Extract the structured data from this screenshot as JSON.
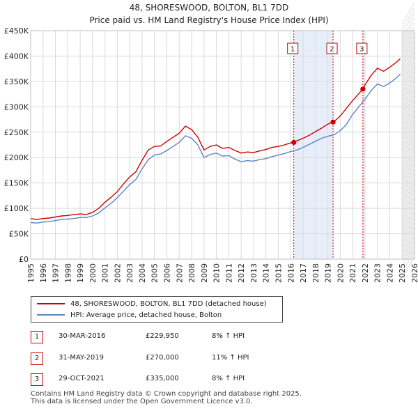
{
  "chart_data": {
    "type": "line",
    "title": "48, SHORESWOOD, BOLTON, BL1 7DD",
    "subtitle": "Price paid vs. HM Land Registry's House Price Index (HPI)",
    "xlim": [
      1995,
      2026
    ],
    "ylim": [
      0,
      450000
    ],
    "x_ticks": [
      1995,
      1996,
      1997,
      1998,
      1999,
      2000,
      2001,
      2002,
      2003,
      2004,
      2005,
      2006,
      2007,
      2008,
      2009,
      2010,
      2011,
      2012,
      2013,
      2014,
      2015,
      2016,
      2017,
      2018,
      2019,
      2020,
      2021,
      2022,
      2023,
      2024,
      2025,
      2026
    ],
    "y_ticks": [
      {
        "value": 0,
        "label": "£0"
      },
      {
        "value": 50000,
        "label": "£50K"
      },
      {
        "value": 100000,
        "label": "£100K"
      },
      {
        "value": 150000,
        "label": "£150K"
      },
      {
        "value": 200000,
        "label": "£200K"
      },
      {
        "value": 250000,
        "label": "£250K"
      },
      {
        "value": 300000,
        "label": "£300K"
      },
      {
        "value": 350000,
        "label": "£350K"
      },
      {
        "value": 400000,
        "label": "£400K"
      },
      {
        "value": 450000,
        "label": "£450K"
      }
    ],
    "grid": true,
    "series": [
      {
        "name": "48, SHORESWOOD, BOLTON, BL1 7DD (detached house)",
        "color": "#cc0000",
        "x": [
          1995,
          1995.5,
          1996,
          1996.5,
          1997,
          1997.5,
          1998,
          1998.5,
          1999,
          1999.5,
          2000,
          2000.5,
          2001,
          2001.5,
          2002,
          2002.5,
          2003,
          2003.5,
          2004,
          2004.5,
          2005,
          2005.5,
          2006,
          2006.5,
          2007,
          2007.5,
          2008,
          2008.5,
          2009,
          2009.5,
          2010,
          2010.5,
          2011,
          2011.5,
          2012,
          2012.5,
          2013,
          2013.5,
          2014,
          2014.5,
          2015,
          2015.5,
          2016,
          2016.25,
          2016.5,
          2017,
          2017.5,
          2018,
          2018.5,
          2019,
          2019.42,
          2019.5,
          2020,
          2020.5,
          2021,
          2021.5,
          2021.83,
          2022,
          2022.5,
          2023,
          2023.5,
          2024,
          2024.5,
          2024.85
        ],
        "values": [
          80000,
          78000,
          80000,
          81000,
          83000,
          85000,
          86000,
          88000,
          89000,
          88000,
          92000,
          100000,
          112000,
          122000,
          133000,
          148000,
          162000,
          172000,
          195000,
          215000,
          222000,
          223000,
          232000,
          240000,
          248000,
          262000,
          255000,
          240000,
          215000,
          222000,
          225000,
          218000,
          220000,
          214000,
          209000,
          211000,
          210000,
          213000,
          216000,
          220000,
          222000,
          225000,
          229000,
          229950,
          233000,
          238000,
          244000,
          251000,
          258000,
          266000,
          270000,
          271000,
          282000,
          297000,
          312000,
          326000,
          335000,
          343000,
          362000,
          376000,
          370000,
          378000,
          387000,
          395000
        ]
      },
      {
        "name": "HPI: Average price, detached house, Bolton",
        "color": "#5b84c4",
        "x": [
          1995,
          1995.5,
          1996,
          1996.5,
          1997,
          1997.5,
          1998,
          1998.5,
          1999,
          1999.5,
          2000,
          2000.5,
          2001,
          2001.5,
          2002,
          2002.5,
          2003,
          2003.5,
          2004,
          2004.5,
          2005,
          2005.5,
          2006,
          2006.5,
          2007,
          2007.5,
          2008,
          2008.5,
          2009,
          2009.5,
          2010,
          2010.5,
          2011,
          2011.5,
          2012,
          2012.5,
          2013,
          2013.5,
          2014,
          2014.5,
          2015,
          2015.5,
          2016,
          2016.5,
          2017,
          2017.5,
          2018,
          2018.5,
          2019,
          2019.5,
          2020,
          2020.5,
          2021,
          2021.5,
          2022,
          2022.5,
          2023,
          2023.5,
          2024,
          2024.5,
          2024.85
        ],
        "values": [
          72000,
          71000,
          73000,
          74000,
          76000,
          78000,
          79000,
          80000,
          82000,
          82000,
          85000,
          91000,
          101000,
          110000,
          121000,
          134000,
          147000,
          157000,
          178000,
          196000,
          205000,
          207000,
          214000,
          222000,
          230000,
          243000,
          238000,
          225000,
          200000,
          206000,
          209000,
          203000,
          204000,
          197000,
          192000,
          194000,
          193000,
          196000,
          198000,
          202000,
          205000,
          208000,
          212000,
          215000,
          220000,
          226000,
          232000,
          238000,
          242000,
          245000,
          253000,
          265000,
          285000,
          300000,
          315000,
          332000,
          345000,
          340000,
          347000,
          356000,
          365000
        ]
      }
    ],
    "transactions": [
      {
        "id": "1",
        "x": 2016.25,
        "date": "30-MAR-2016",
        "price": "£229,950",
        "value": 229950,
        "hpi": "8% ↑ HPI"
      },
      {
        "id": "2",
        "x": 2019.42,
        "date": "31-MAY-2019",
        "price": "£270,000",
        "value": 270000,
        "hpi": "11% ↑ HPI"
      },
      {
        "id": "3",
        "x": 2021.83,
        "date": "29-OCT-2021",
        "price": "£335,000",
        "value": 335000,
        "hpi": "8% ↑ HPI"
      }
    ],
    "shaded_ranges": [
      [
        2016.25,
        2019.42
      ],
      [
        2021.83,
        2022.0
      ],
      [
        2025.0,
        2026.0
      ]
    ]
  },
  "legend": {
    "red_label": "48, SHORESWOOD, BOLTON, BL1 7DD (detached house)",
    "blue_label": "HPI: Average price, detached house, Bolton"
  },
  "footer": {
    "line1": "Contains HM Land Registry data © Crown copyright and database right 2025.",
    "line2": "This data is licensed under the Open Government Licence v3.0."
  }
}
